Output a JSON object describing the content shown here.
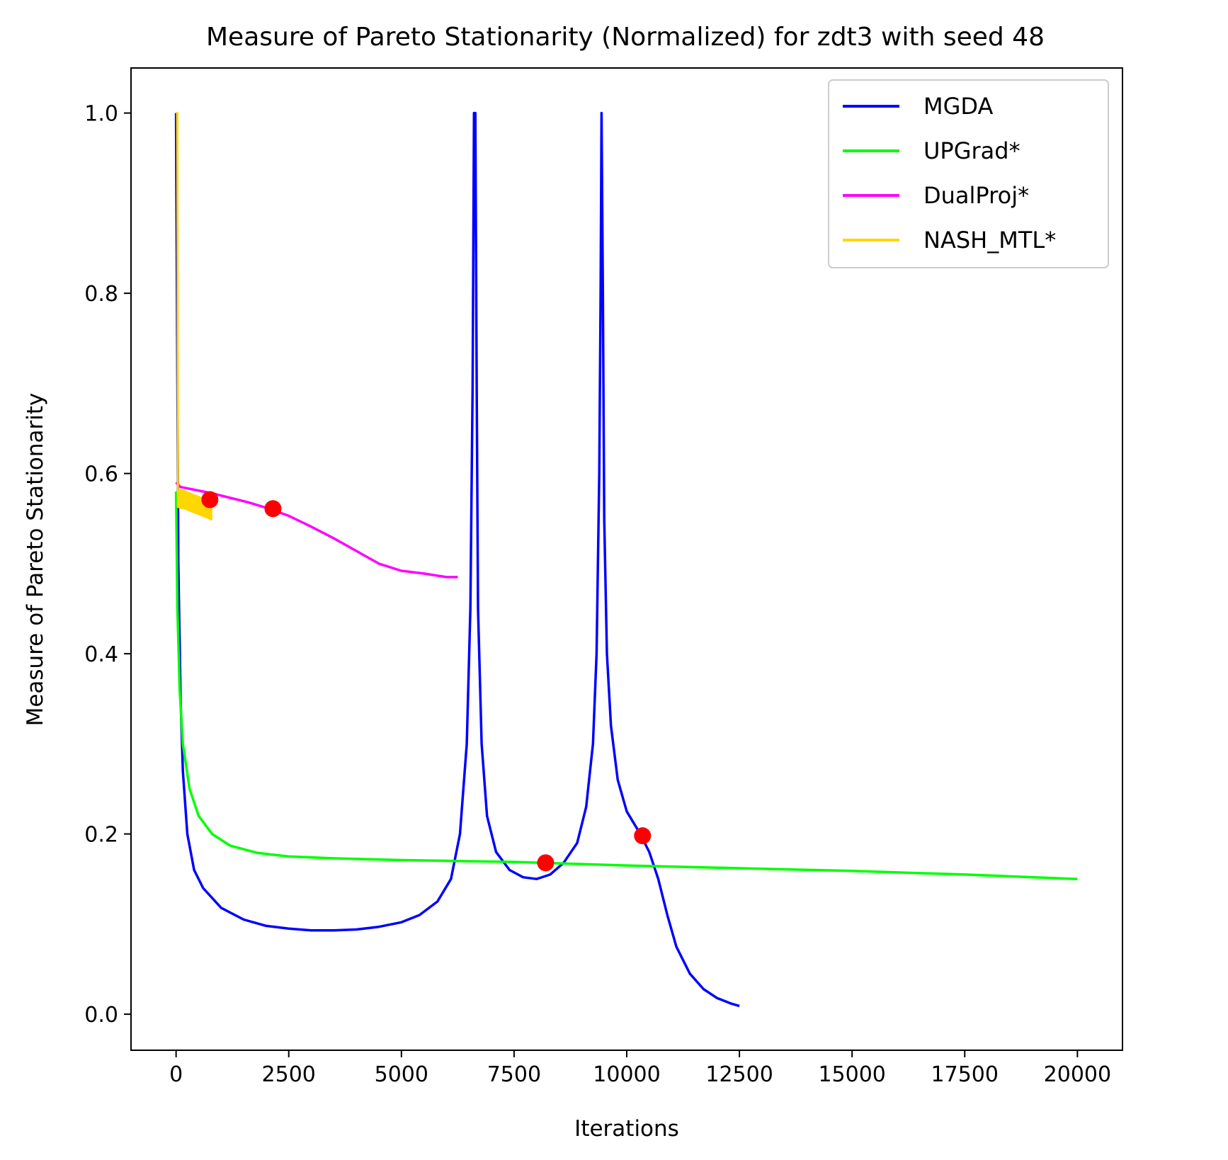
{
  "chart_data": {
    "type": "line",
    "title": "Measure of Pareto Stationarity (Normalized) for zdt3 with seed 48",
    "xlabel": "Iterations",
    "ylabel": "Measure of Pareto Stationarity",
    "xlim": [
      -1000,
      21000
    ],
    "ylim": [
      -0.04,
      1.05
    ],
    "xticks": [
      0,
      2500,
      5000,
      7500,
      10000,
      12500,
      15000,
      17500,
      20000
    ],
    "xtick_labels": [
      "0",
      "2500",
      "5000",
      "7500",
      "10000",
      "12500",
      "15000",
      "17500",
      "20000"
    ],
    "yticks": [
      0.0,
      0.2,
      0.4,
      0.6,
      0.8,
      1.0
    ],
    "ytick_labels": [
      "0.0",
      "0.2",
      "0.4",
      "0.6",
      "0.8",
      "1.0"
    ],
    "grid": false,
    "legend_position": "top-right",
    "series": [
      {
        "name": "MGDA",
        "color": "#0000ff",
        "points": [
          [
            0,
            1.0
          ],
          [
            50,
            0.5
          ],
          [
            100,
            0.35
          ],
          [
            150,
            0.27
          ],
          [
            250,
            0.2
          ],
          [
            400,
            0.16
          ],
          [
            600,
            0.14
          ],
          [
            1000,
            0.118
          ],
          [
            1500,
            0.105
          ],
          [
            2000,
            0.098
          ],
          [
            2500,
            0.095
          ],
          [
            3000,
            0.093
          ],
          [
            3500,
            0.093
          ],
          [
            4000,
            0.094
          ],
          [
            4500,
            0.097
          ],
          [
            5000,
            0.102
          ],
          [
            5400,
            0.11
          ],
          [
            5800,
            0.125
          ],
          [
            6100,
            0.15
          ],
          [
            6300,
            0.2
          ],
          [
            6450,
            0.3
          ],
          [
            6530,
            0.45
          ],
          [
            6580,
            0.7
          ],
          [
            6610,
            1.0
          ],
          [
            6640,
            1.0
          ],
          [
            6670,
            0.7
          ],
          [
            6700,
            0.45
          ],
          [
            6780,
            0.3
          ],
          [
            6900,
            0.22
          ],
          [
            7100,
            0.18
          ],
          [
            7400,
            0.16
          ],
          [
            7700,
            0.152
          ],
          [
            8000,
            0.15
          ],
          [
            8300,
            0.155
          ],
          [
            8600,
            0.168
          ],
          [
            8900,
            0.19
          ],
          [
            9100,
            0.23
          ],
          [
            9250,
            0.3
          ],
          [
            9330,
            0.4
          ],
          [
            9390,
            0.6
          ],
          [
            9420,
            0.8
          ],
          [
            9440,
            1.0
          ],
          [
            9470,
            0.8
          ],
          [
            9500,
            0.55
          ],
          [
            9560,
            0.4
          ],
          [
            9650,
            0.32
          ],
          [
            9800,
            0.26
          ],
          [
            10000,
            0.225
          ],
          [
            10300,
            0.2
          ],
          [
            10500,
            0.18
          ],
          [
            10700,
            0.15
          ],
          [
            10900,
            0.11
          ],
          [
            11100,
            0.075
          ],
          [
            11400,
            0.045
          ],
          [
            11700,
            0.028
          ],
          [
            12000,
            0.018
          ],
          [
            12300,
            0.012
          ],
          [
            12500,
            0.009
          ]
        ]
      },
      {
        "name": "UPGrad*",
        "color": "#00ff00",
        "points": [
          [
            0,
            0.58
          ],
          [
            30,
            0.45
          ],
          [
            80,
            0.36
          ],
          [
            150,
            0.3
          ],
          [
            300,
            0.25
          ],
          [
            500,
            0.22
          ],
          [
            800,
            0.2
          ],
          [
            1200,
            0.187
          ],
          [
            1800,
            0.179
          ],
          [
            2500,
            0.175
          ],
          [
            3500,
            0.173
          ],
          [
            5000,
            0.171
          ],
          [
            7500,
            0.169
          ],
          [
            10000,
            0.165
          ],
          [
            12500,
            0.162
          ],
          [
            15000,
            0.159
          ],
          [
            17500,
            0.155
          ],
          [
            20000,
            0.15
          ]
        ]
      },
      {
        "name": "DualProj*",
        "color": "#ff00ff",
        "points": [
          [
            0,
            0.59
          ],
          [
            100,
            0.585
          ],
          [
            400,
            0.582
          ],
          [
            800,
            0.578
          ],
          [
            1200,
            0.573
          ],
          [
            1600,
            0.568
          ],
          [
            2000,
            0.562
          ],
          [
            2500,
            0.553
          ],
          [
            3000,
            0.541
          ],
          [
            3500,
            0.528
          ],
          [
            4000,
            0.514
          ],
          [
            4500,
            0.5
          ],
          [
            5000,
            0.492
          ],
          [
            5500,
            0.489
          ],
          [
            6000,
            0.485
          ],
          [
            6250,
            0.485
          ]
        ]
      },
      {
        "name": "NASH_MTL*",
        "color": "#ffd700",
        "points": [
          [
            0,
            1.0
          ],
          [
            30,
            1.0
          ],
          [
            40,
            0.58
          ],
          [
            100,
            0.582
          ],
          [
            200,
            0.58
          ],
          [
            300,
            0.578
          ],
          [
            400,
            0.576
          ],
          [
            500,
            0.574
          ],
          [
            600,
            0.572
          ],
          [
            700,
            0.57
          ],
          [
            780,
            0.568
          ],
          [
            780,
            0.549
          ],
          [
            700,
            0.551
          ],
          [
            600,
            0.553
          ],
          [
            500,
            0.555
          ],
          [
            400,
            0.557
          ],
          [
            300,
            0.559
          ],
          [
            200,
            0.561
          ],
          [
            100,
            0.562
          ],
          [
            40,
            0.563
          ],
          [
            40,
            0.58
          ]
        ]
      }
    ],
    "markers": {
      "color": "#ff0000",
      "points": [
        [
          750,
          0.571
        ],
        [
          2150,
          0.561
        ],
        [
          8200,
          0.168
        ],
        [
          10350,
          0.198
        ]
      ]
    }
  }
}
